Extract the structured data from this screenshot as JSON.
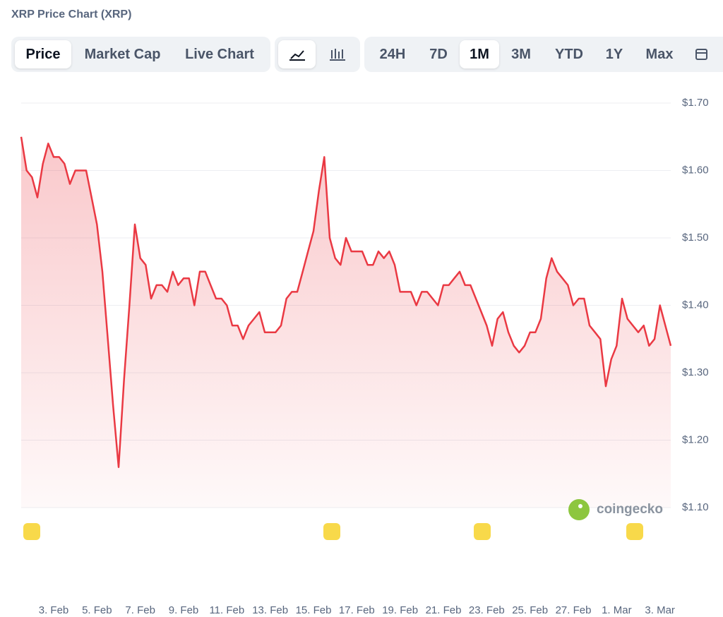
{
  "chart_data": {
    "type": "line",
    "title": "XRP Price Chart (XRP)",
    "categories": [
      null,
      null,
      null,
      null,
      null,
      null,
      "3. Feb",
      null,
      null,
      null,
      null,
      null,
      null,
      null,
      "5. Feb",
      null,
      null,
      null,
      null,
      null,
      null,
      null,
      "7. Feb",
      null,
      null,
      null,
      null,
      null,
      null,
      null,
      "9. Feb",
      null,
      null,
      null,
      null,
      null,
      null,
      null,
      "11. Feb",
      null,
      null,
      null,
      null,
      null,
      null,
      null,
      "13. Feb",
      null,
      null,
      null,
      null,
      null,
      null,
      null,
      "15. Feb",
      null,
      null,
      null,
      null,
      null,
      null,
      null,
      "17. Feb",
      null,
      null,
      null,
      null,
      null,
      null,
      null,
      "19. Feb",
      null,
      null,
      null,
      null,
      null,
      null,
      null,
      "21. Feb",
      null,
      null,
      null,
      null,
      null,
      null,
      null,
      "23. Feb",
      null,
      null,
      null,
      null,
      null,
      null,
      null,
      "25. Feb",
      null,
      null,
      null,
      null,
      null,
      null,
      null,
      "27. Feb",
      null,
      null,
      null,
      null,
      null,
      null,
      null,
      "1. Mar",
      null,
      null,
      null,
      null,
      null,
      null,
      null,
      "3. Mar",
      null,
      null
    ],
    "series": [
      {
        "name": "XRP",
        "color": "#ea3943",
        "values": [
          1.65,
          1.6,
          1.59,
          1.56,
          1.61,
          1.64,
          1.62,
          1.62,
          1.61,
          1.58,
          1.6,
          1.6,
          1.6,
          1.56,
          1.52,
          1.45,
          1.35,
          1.25,
          1.16,
          1.29,
          1.4,
          1.52,
          1.47,
          1.46,
          1.41,
          1.43,
          1.43,
          1.42,
          1.45,
          1.43,
          1.44,
          1.44,
          1.4,
          1.45,
          1.45,
          1.43,
          1.41,
          1.41,
          1.4,
          1.37,
          1.37,
          1.35,
          1.37,
          1.38,
          1.39,
          1.36,
          1.36,
          1.36,
          1.37,
          1.41,
          1.42,
          1.42,
          1.45,
          1.48,
          1.51,
          1.57,
          1.62,
          1.5,
          1.47,
          1.46,
          1.5,
          1.48,
          1.48,
          1.48,
          1.46,
          1.46,
          1.48,
          1.47,
          1.48,
          1.46,
          1.42,
          1.42,
          1.42,
          1.4,
          1.42,
          1.42,
          1.41,
          1.4,
          1.43,
          1.43,
          1.44,
          1.45,
          1.43,
          1.43,
          1.41,
          1.39,
          1.37,
          1.34,
          1.38,
          1.39,
          1.36,
          1.34,
          1.33,
          1.34,
          1.36,
          1.36,
          1.38,
          1.44,
          1.47,
          1.45,
          1.44,
          1.43,
          1.4,
          1.41,
          1.41,
          1.37,
          1.36,
          1.35,
          1.28,
          1.32,
          1.34,
          1.41,
          1.38,
          1.37,
          1.36,
          1.37,
          1.34,
          1.35,
          1.4,
          1.37,
          1.34
        ]
      }
    ],
    "ylim": [
      1.1,
      1.7
    ],
    "yticks": [
      {
        "value": 1.1,
        "label": "$1.10"
      },
      {
        "value": 1.2,
        "label": "$1.20"
      },
      {
        "value": 1.3,
        "label": "$1.30"
      },
      {
        "value": 1.4,
        "label": "$1.40"
      },
      {
        "value": 1.5,
        "label": "$1.50"
      },
      {
        "value": 1.6,
        "label": "$1.60"
      },
      {
        "value": 1.7,
        "label": "$1.70"
      }
    ],
    "grid": true
  },
  "tabs": [
    "Price",
    "Market Cap",
    "Live Chart"
  ],
  "ranges": [
    "24H",
    "7D",
    "1M",
    "3M",
    "YTD",
    "1Y",
    "Max"
  ],
  "watermark": "coingecko"
}
